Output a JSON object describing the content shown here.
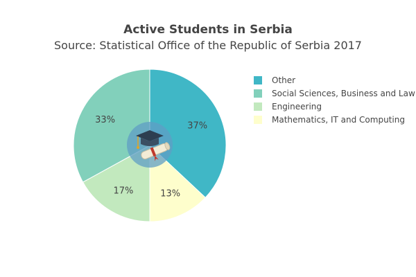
{
  "chart_data": {
    "type": "pie",
    "title": "Active Students in Serbia",
    "subtitle": "Source: Statistical Office of the Republic of Serbia 2017",
    "slices": [
      {
        "label": "Other",
        "value": 37,
        "text": "37%",
        "color": "#40B7C6"
      },
      {
        "label": "Mathematics, IT and Computing",
        "value": 13,
        "text": "13%",
        "color": "#FEFECC"
      },
      {
        "label": "Engineering",
        "value": 17,
        "text": "17%",
        "color": "#C2E9BE"
      },
      {
        "label": "Social Sciences, Business and Law",
        "value": 33,
        "text": "33%",
        "color": "#82D0BB"
      }
    ],
    "legend": {
      "placement": "right",
      "items": [
        {
          "label": "Other",
          "color": "#40B7C6"
        },
        {
          "label": "Social Sciences, Business and Law",
          "color": "#82D0BB"
        },
        {
          "label": "Engineering",
          "color": "#C2E9BE"
        },
        {
          "label": "Mathematics, IT and Computing",
          "color": "#FEFECC"
        }
      ]
    },
    "center_image": "graduation-cap-and-diploma-icon"
  }
}
